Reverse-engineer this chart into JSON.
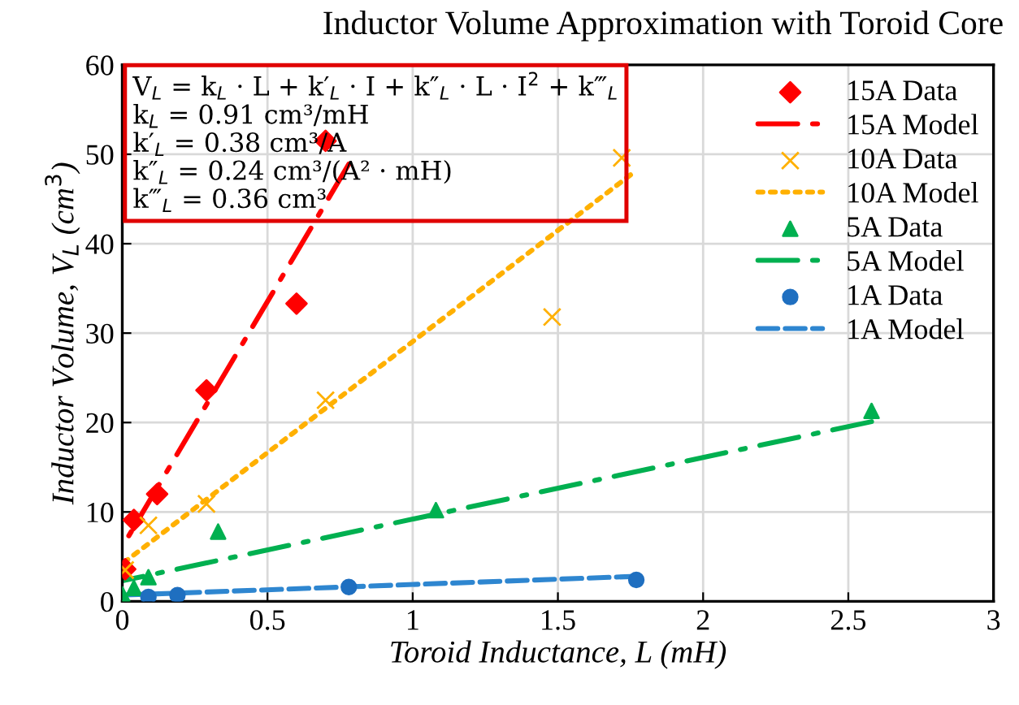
{
  "chart_data": {
    "type": "scatter",
    "title": "Inductor Volume Approximation with Toroid Core",
    "xlabel": "Toroid Inductance, L (mH)",
    "ylabel": "Inductor Volume, V$_{L}$ (cm$^{3}$)",
    "xlim": [
      0,
      3
    ],
    "ylim": [
      0,
      60
    ],
    "xticks": [
      0,
      0.5,
      1,
      1.5,
      2,
      2.5,
      3
    ],
    "yticks": [
      0,
      10,
      20,
      30,
      40,
      50,
      60
    ],
    "grid": true,
    "legend": "top right",
    "annotations": [
      "V$_{L}$ = k$_{L}$ · L + k′$_{L}$ · I + k″$_{L}$ · L · I$^{2}$ + k‴$_{L}$",
      "k$_{L}$ = 0.91 cm³/mH",
      "k′$_{L}$ = 0.38 cm³/A",
      "k″$_{L}$ = 0.24 cm³/(A² · mH)",
      "k‴$_{L}$ = 0.36 cm³"
    ],
    "series": [
      {
        "name": "15A Data",
        "type": "scatter",
        "marker": "diamond",
        "color": "#ff0000",
        "x": [
          0.01,
          0.04,
          0.12,
          0.29,
          0.6,
          0.7
        ],
        "values": [
          3.6,
          9.1,
          12,
          23.6,
          33.3,
          51.5
        ]
      },
      {
        "name": "15A Model",
        "type": "line",
        "line_style": "dashdot",
        "color": "#ff0000",
        "x": [
          0,
          0.78
        ],
        "values": [
          6.1,
          48.9
        ]
      },
      {
        "name": "10A Data",
        "type": "scatter",
        "marker": "cross",
        "color": "#ffb000",
        "x": [
          0.01,
          0.09,
          0.29,
          0.7,
          1.48,
          1.72
        ],
        "values": [
          3.5,
          8.5,
          10.9,
          22.5,
          31.8,
          49.6
        ]
      },
      {
        "name": "10A Model",
        "type": "line",
        "line_style": "dotted",
        "color": "#ffb000",
        "x": [
          0,
          1.75
        ],
        "values": [
          4.2,
          47.7
        ]
      },
      {
        "name": "5A Data",
        "type": "scatter",
        "marker": "triangle",
        "color": "#00b050",
        "x": [
          0.0,
          0.04,
          0.09,
          0.33,
          1.08,
          2.58
        ],
        "values": [
          0.8,
          1.5,
          2.7,
          7.8,
          10.2,
          21.3
        ]
      },
      {
        "name": "5A Model",
        "type": "line",
        "line_style": "dashdot",
        "color": "#00b050",
        "x": [
          0,
          2.58
        ],
        "values": [
          2.3,
          20.1
        ]
      },
      {
        "name": "1A Data",
        "type": "scatter",
        "marker": "circle",
        "color": "#1f6fc0",
        "x": [
          0.09,
          0.19,
          0.78,
          1.77
        ],
        "values": [
          0.5,
          0.7,
          1.6,
          2.4
        ]
      },
      {
        "name": "1A Model",
        "type": "line",
        "line_style": "dashed",
        "color": "#2e86d0",
        "x": [
          0,
          1.77
        ],
        "values": [
          0.7,
          2.8
        ]
      }
    ]
  }
}
